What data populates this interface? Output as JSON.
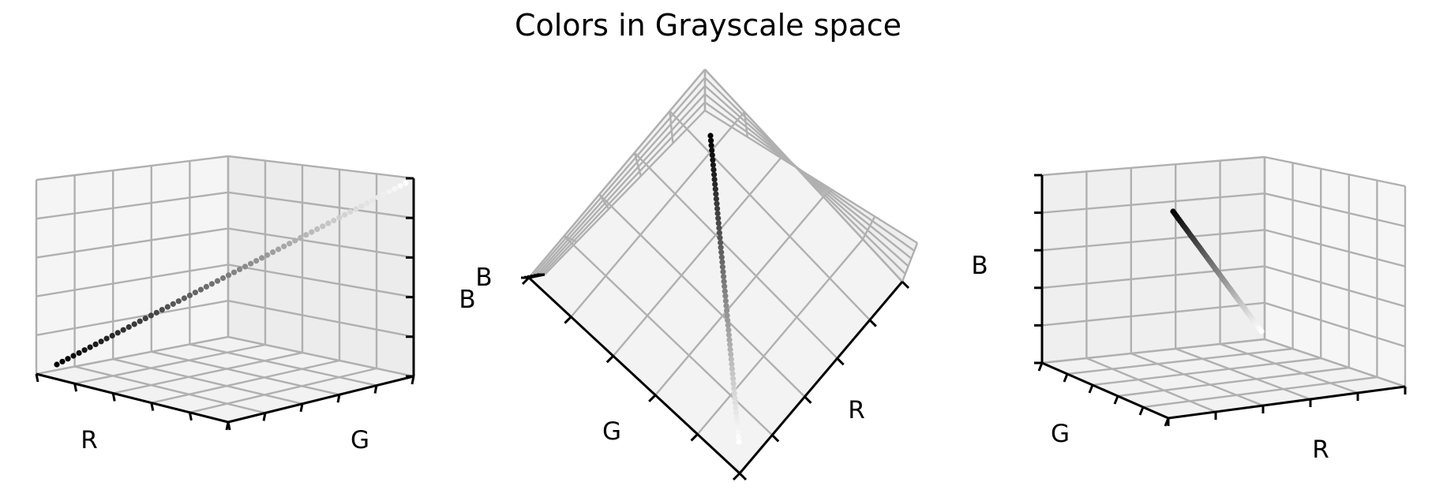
{
  "chart_data": {
    "type": "scatter",
    "projection": "3d",
    "title": "Colors in Grayscale space",
    "axis_range": [
      0,
      1
    ],
    "grid": true,
    "colormap": "gray",
    "point_count": 64,
    "series": [
      {
        "points": {
          "R": [
            0.0,
            1.0
          ],
          "G": [
            0.0,
            1.0
          ],
          "B": [
            0.0,
            1.0
          ]
        }
      }
    ],
    "panels": [
      {
        "xlabel": "R",
        "ylabel": "G",
        "zlabel": "B",
        "view": "front-corner"
      },
      {
        "xlabel": "R",
        "ylabel": "G",
        "zlabel": "B",
        "view": "top-down"
      },
      {
        "xlabel": "R",
        "ylabel": "G",
        "zlabel": "B",
        "view": "rear-corner"
      }
    ]
  }
}
